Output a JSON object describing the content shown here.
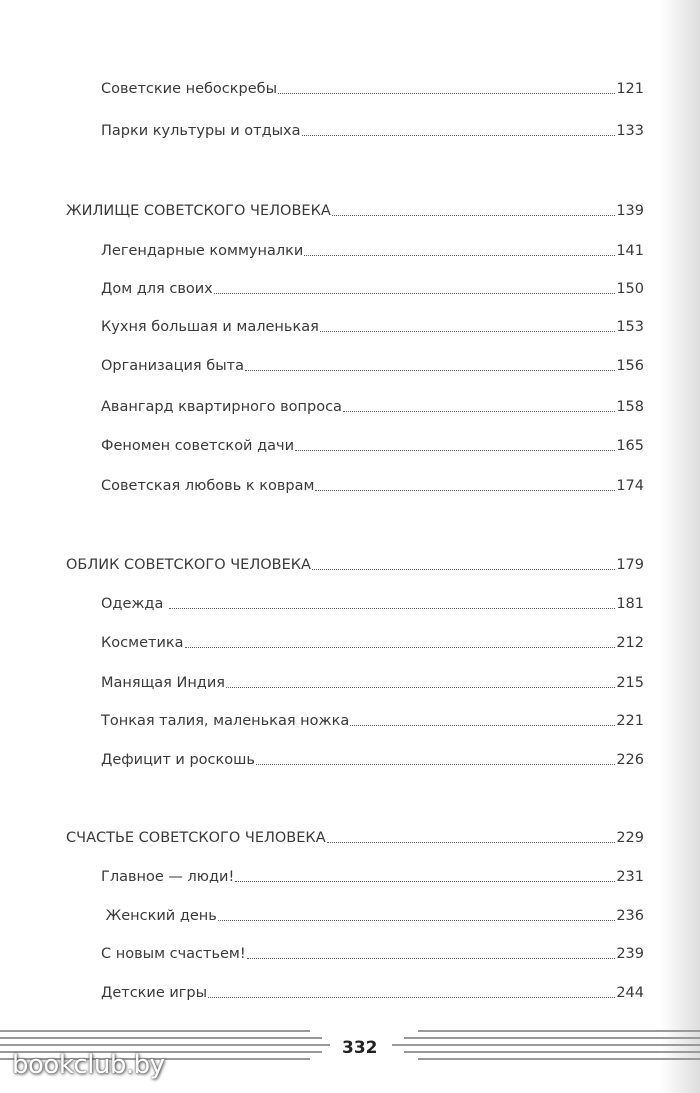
{
  "toc": {
    "group0": [
      {
        "title": "Советские небоскребы",
        "page": "121"
      },
      {
        "title": "Парки культуры и отдыха",
        "page": "133"
      }
    ],
    "sections": [
      {
        "title": "ЖИЛИЩЕ СОВЕТСКОГО ЧЕЛОВЕКА",
        "page": "139",
        "items": [
          {
            "title": "Легендарные коммуналки",
            "page": "141"
          },
          {
            "title": "Дом для своих",
            "page": "150"
          },
          {
            "title": "Кухня большая и маленькая",
            "page": "153"
          },
          {
            "title": "Организация быта",
            "page": "156"
          },
          {
            "title": "Авангард квартирного вопроса",
            "page": "158"
          },
          {
            "title": "Феномен советской дачи",
            "page": "165"
          },
          {
            "title": "Советская любовь к коврам",
            "page": "174"
          }
        ]
      },
      {
        "title": "ОБЛИК СОВЕТСКОГО ЧЕЛОВЕКА",
        "page": "179",
        "items": [
          {
            "title": "Одежда ",
            "page": "181"
          },
          {
            "title": "Косметика",
            "page": "212"
          },
          {
            "title": "Манящая Индия",
            "page": "215"
          },
          {
            "title": "Тонкая талия, маленькая ножка",
            "page": "221"
          },
          {
            "title": "Дефицит и роскошь",
            "page": "226"
          }
        ]
      },
      {
        "title": "СЧАСТЬЕ СОВЕТСКОГО ЧЕЛОВЕКА",
        "page": "229",
        "items": [
          {
            "title": "Главное — люди!",
            "page": "231"
          },
          {
            "title": " Женский день",
            "page": "236"
          },
          {
            "title": "С новым счастьем!",
            "page": "239"
          },
          {
            "title": "Детские игры",
            "page": "244"
          }
        ]
      }
    ]
  },
  "footer": {
    "page_number": "332"
  },
  "watermark": "bookclub.by"
}
